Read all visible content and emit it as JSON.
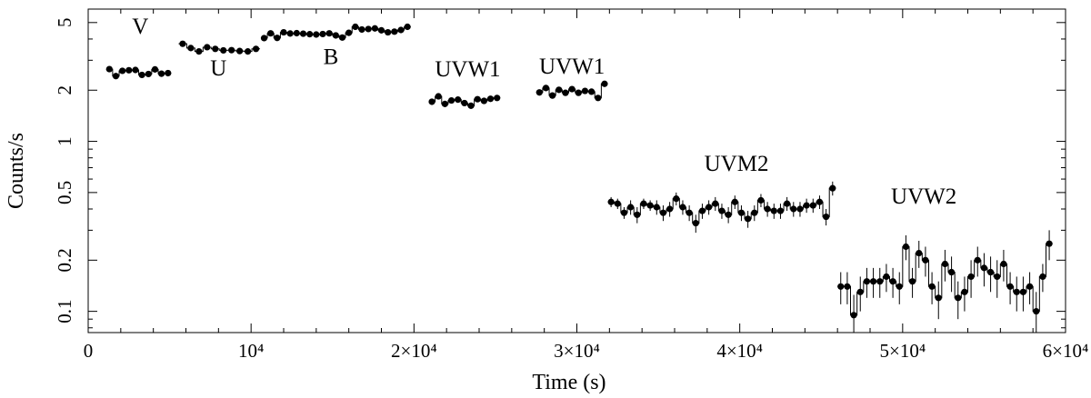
{
  "chart_data": {
    "type": "scatter",
    "xlabel": "Time (s)",
    "ylabel": "Counts/s",
    "xlim": [
      0,
      60000
    ],
    "ylim": [
      0.075,
      6.0
    ],
    "yscale": "log",
    "x_ticks": [
      {
        "value": 0,
        "label": "0"
      },
      {
        "value": 10000,
        "label": "10⁴"
      },
      {
        "value": 20000,
        "label": "2×10⁴"
      },
      {
        "value": 30000,
        "label": "3×10⁴"
      },
      {
        "value": 40000,
        "label": "4×10⁴"
      },
      {
        "value": 50000,
        "label": "5×10⁴"
      },
      {
        "value": 60000,
        "label": "6×10⁴"
      }
    ],
    "y_ticks": [
      {
        "value": 0.1,
        "label": "0.1"
      },
      {
        "value": 0.2,
        "label": "0.2"
      },
      {
        "value": 0.5,
        "label": "0.5"
      },
      {
        "value": 1,
        "label": "1"
      },
      {
        "value": 2,
        "label": "2"
      },
      {
        "value": 5,
        "label": "5"
      }
    ],
    "series": [
      {
        "name": "V",
        "label_pos": [
          3200,
          4.3
        ],
        "x": [
          1300,
          1700,
          2100,
          2500,
          2900,
          3300,
          3700,
          4100,
          4500,
          4900
        ],
        "y": [
          2.66,
          2.42,
          2.6,
          2.62,
          2.63,
          2.46,
          2.49,
          2.65,
          2.5,
          2.52
        ],
        "err": [
          0.05,
          0.05,
          0.05,
          0.05,
          0.05,
          0.05,
          0.05,
          0.05,
          0.05,
          0.05
        ]
      },
      {
        "name": "U",
        "label_pos": [
          8000,
          2.45
        ],
        "x": [
          5800,
          6300,
          6800,
          7300,
          7800,
          8300,
          8800,
          9300,
          9800,
          10300
        ],
        "y": [
          3.75,
          3.54,
          3.38,
          3.58,
          3.5,
          3.43,
          3.44,
          3.4,
          3.38,
          3.5
        ],
        "err": [
          0.06,
          0.06,
          0.06,
          0.06,
          0.06,
          0.06,
          0.06,
          0.06,
          0.06,
          0.06
        ]
      },
      {
        "name": "B",
        "label_pos": [
          14900,
          2.85
        ],
        "x": [
          10800,
          11200,
          11600,
          12000,
          12400,
          12800,
          13200,
          13600,
          14000,
          14400,
          14800,
          15200,
          15600,
          16000,
          16400,
          16800,
          17200,
          17600,
          18000,
          18400,
          18800,
          19200,
          19600
        ],
        "y": [
          4.05,
          4.32,
          4.06,
          4.38,
          4.31,
          4.33,
          4.3,
          4.27,
          4.25,
          4.28,
          4.32,
          4.2,
          4.08,
          4.35,
          4.72,
          4.55,
          4.58,
          4.62,
          4.5,
          4.38,
          4.42,
          4.52,
          4.72
        ],
        "err": [
          0.07,
          0.07,
          0.07,
          0.07,
          0.07,
          0.07,
          0.07,
          0.07,
          0.07,
          0.07,
          0.07,
          0.07,
          0.07,
          0.07,
          0.07,
          0.07,
          0.07,
          0.07,
          0.07,
          0.07,
          0.07,
          0.07,
          0.07
        ]
      },
      {
        "name": "UVW1",
        "label_pos": [
          23300,
          2.42
        ],
        "x": [
          21100,
          21500,
          21900,
          22300,
          22700,
          23100,
          23500,
          23900,
          24300,
          24700,
          25100
        ],
        "y": [
          1.71,
          1.84,
          1.66,
          1.74,
          1.76,
          1.68,
          1.62,
          1.77,
          1.73,
          1.78,
          1.8
        ],
        "err": [
          0.04,
          0.04,
          0.04,
          0.04,
          0.04,
          0.04,
          0.04,
          0.04,
          0.04,
          0.04,
          0.04
        ]
      },
      {
        "name": "UVW1",
        "label_pos": [
          29700,
          2.5
        ],
        "x": [
          27700,
          28100,
          28500,
          28900,
          29300,
          29700,
          30100,
          30500,
          30900,
          31300,
          31700
        ],
        "y": [
          1.94,
          2.06,
          1.86,
          2.01,
          1.93,
          2.03,
          1.93,
          1.98,
          1.96,
          1.8,
          2.18
        ],
        "err": [
          0.05,
          0.05,
          0.05,
          0.05,
          0.05,
          0.05,
          0.05,
          0.05,
          0.05,
          0.05,
          0.05
        ]
      },
      {
        "name": "UVM2",
        "label_pos": [
          39800,
          0.67
        ],
        "x": [
          32100,
          32500,
          32900,
          33300,
          33700,
          34100,
          34500,
          34900,
          35300,
          35700,
          36100,
          36500,
          36900,
          37300,
          37700,
          38100,
          38500,
          38900,
          39300,
          39700,
          40100,
          40500,
          40900,
          41300,
          41700,
          42100,
          42500,
          42900,
          43300,
          43700,
          44100,
          44500,
          44900,
          45300,
          45700
        ],
        "y": [
          0.44,
          0.43,
          0.38,
          0.41,
          0.37,
          0.43,
          0.42,
          0.41,
          0.38,
          0.4,
          0.46,
          0.41,
          0.38,
          0.33,
          0.39,
          0.41,
          0.43,
          0.39,
          0.37,
          0.44,
          0.38,
          0.35,
          0.38,
          0.45,
          0.4,
          0.39,
          0.39,
          0.43,
          0.4,
          0.4,
          0.42,
          0.42,
          0.44,
          0.36,
          0.53
        ],
        "err": [
          0.03,
          0.03,
          0.03,
          0.04,
          0.04,
          0.03,
          0.03,
          0.04,
          0.04,
          0.04,
          0.04,
          0.04,
          0.04,
          0.04,
          0.04,
          0.04,
          0.04,
          0.04,
          0.04,
          0.04,
          0.04,
          0.04,
          0.04,
          0.04,
          0.04,
          0.04,
          0.04,
          0.04,
          0.04,
          0.04,
          0.04,
          0.04,
          0.04,
          0.04,
          0.05
        ]
      },
      {
        "name": "UVW2",
        "label_pos": [
          51300,
          0.43
        ],
        "x": [
          46200,
          46600,
          47000,
          47400,
          47800,
          48200,
          48600,
          49000,
          49400,
          49800,
          50200,
          50600,
          51000,
          51400,
          51800,
          52200,
          52600,
          53000,
          53400,
          53800,
          54200,
          54600,
          55000,
          55400,
          55800,
          56200,
          56600,
          57000,
          57400,
          57800,
          58200,
          58600,
          59000
        ],
        "y": [
          0.14,
          0.14,
          0.095,
          0.13,
          0.15,
          0.15,
          0.15,
          0.16,
          0.15,
          0.14,
          0.24,
          0.15,
          0.22,
          0.2,
          0.14,
          0.12,
          0.19,
          0.17,
          0.12,
          0.13,
          0.16,
          0.2,
          0.18,
          0.17,
          0.16,
          0.19,
          0.14,
          0.13,
          0.13,
          0.14,
          0.1,
          0.16,
          0.25
        ],
        "err": [
          0.03,
          0.03,
          0.03,
          0.03,
          0.03,
          0.03,
          0.03,
          0.03,
          0.03,
          0.03,
          0.04,
          0.03,
          0.04,
          0.04,
          0.03,
          0.03,
          0.04,
          0.04,
          0.03,
          0.03,
          0.04,
          0.04,
          0.04,
          0.04,
          0.04,
          0.04,
          0.03,
          0.03,
          0.03,
          0.03,
          0.03,
          0.03,
          0.05
        ]
      }
    ],
    "grid": false,
    "legend": "none"
  }
}
